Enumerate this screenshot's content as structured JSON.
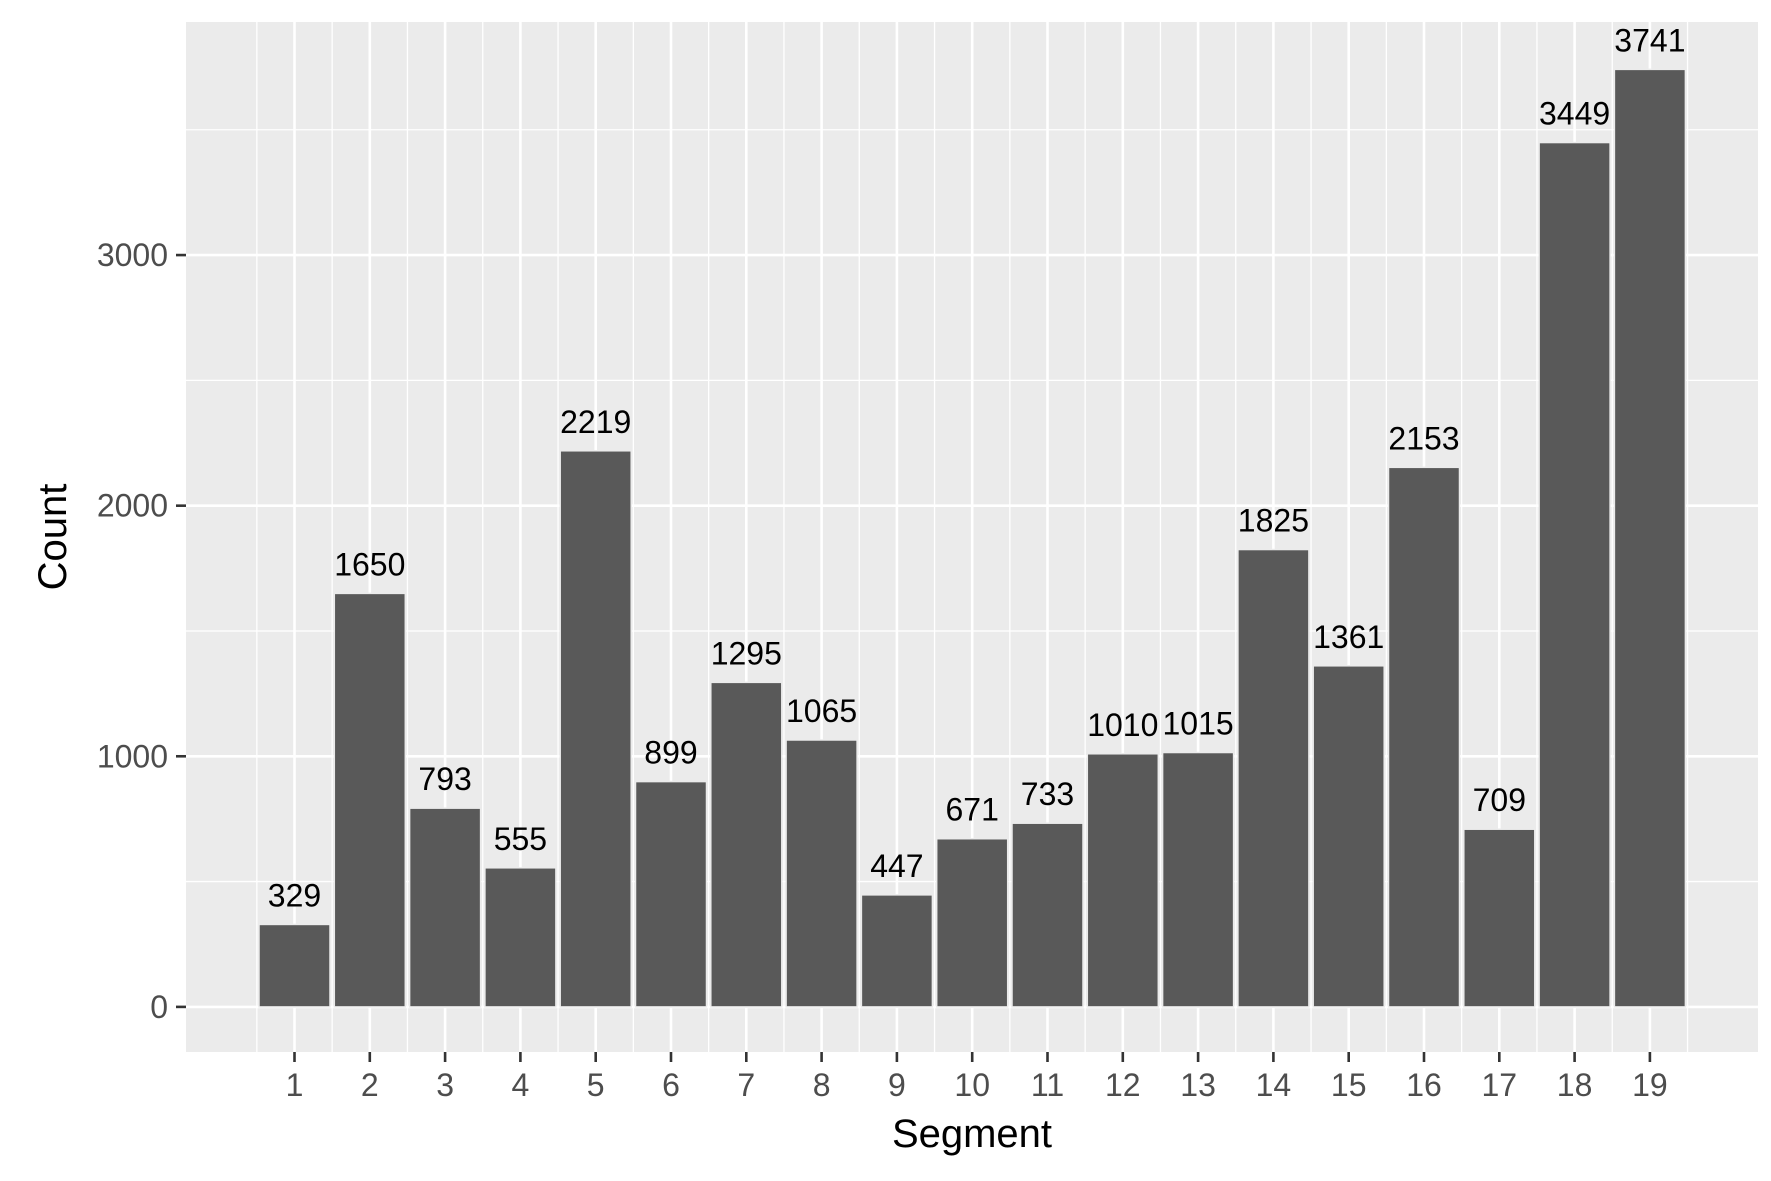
{
  "chart_data": {
    "type": "bar",
    "xlabel": "Segment",
    "ylabel": "Count",
    "categories": [
      "1",
      "2",
      "3",
      "4",
      "5",
      "6",
      "7",
      "8",
      "9",
      "10",
      "11",
      "12",
      "13",
      "14",
      "15",
      "16",
      "17",
      "18",
      "19"
    ],
    "values": [
      329,
      1650,
      793,
      555,
      2219,
      899,
      1295,
      1065,
      447,
      671,
      733,
      1010,
      1015,
      1825,
      1361,
      2153,
      709,
      3449,
      3741
    ],
    "y_ticks": [
      0,
      1000,
      2000,
      3000
    ],
    "ylim": [
      -180,
      3930
    ],
    "grid": true,
    "legend": "none",
    "colors": {
      "panel_background": "#ebebeb",
      "grid": "#ffffff",
      "bar_fill": "#595959",
      "tick_text": "#4d4d4d",
      "axis_title_text": "#000000",
      "data_label_text": "#000000"
    }
  }
}
